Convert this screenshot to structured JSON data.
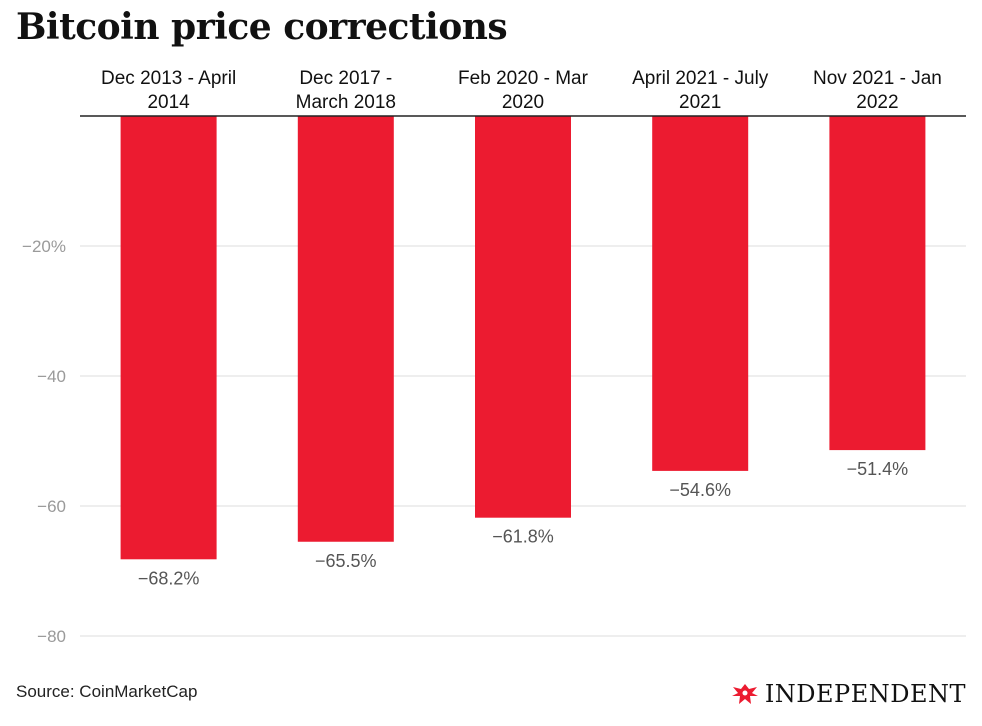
{
  "title": "Bitcoin price corrections",
  "source": "Source: CoinMarketCap",
  "brand": "INDEPENDENT",
  "colors": {
    "bar": "#ec1b30",
    "grid": "#dddddd",
    "axis": "#222222",
    "tick": "#9a9a9a",
    "label": "#555555",
    "eagle": "#ec1b30"
  },
  "chart_data": {
    "type": "bar",
    "categories": [
      "Dec 2013 - April 2014",
      "Dec 2017 - March 2018",
      "Feb 2020 - Mar 2020",
      "April 2021 - July 2021",
      "Nov 2021 - Jan 2022"
    ],
    "values": [
      -68.2,
      -65.5,
      -61.8,
      -54.6,
      -51.4
    ],
    "data_labels": [
      "−68.2%",
      "−65.5%",
      "−61.8%",
      "−54.6%",
      "−51.4%"
    ],
    "y_ticks": [
      -20,
      -40,
      -60,
      -80
    ],
    "y_tick_labels": [
      "−20%",
      "−40",
      "−60",
      "−80"
    ],
    "ylim": [
      -80,
      0
    ],
    "grid": true,
    "xlabel": "",
    "ylabel": ""
  }
}
